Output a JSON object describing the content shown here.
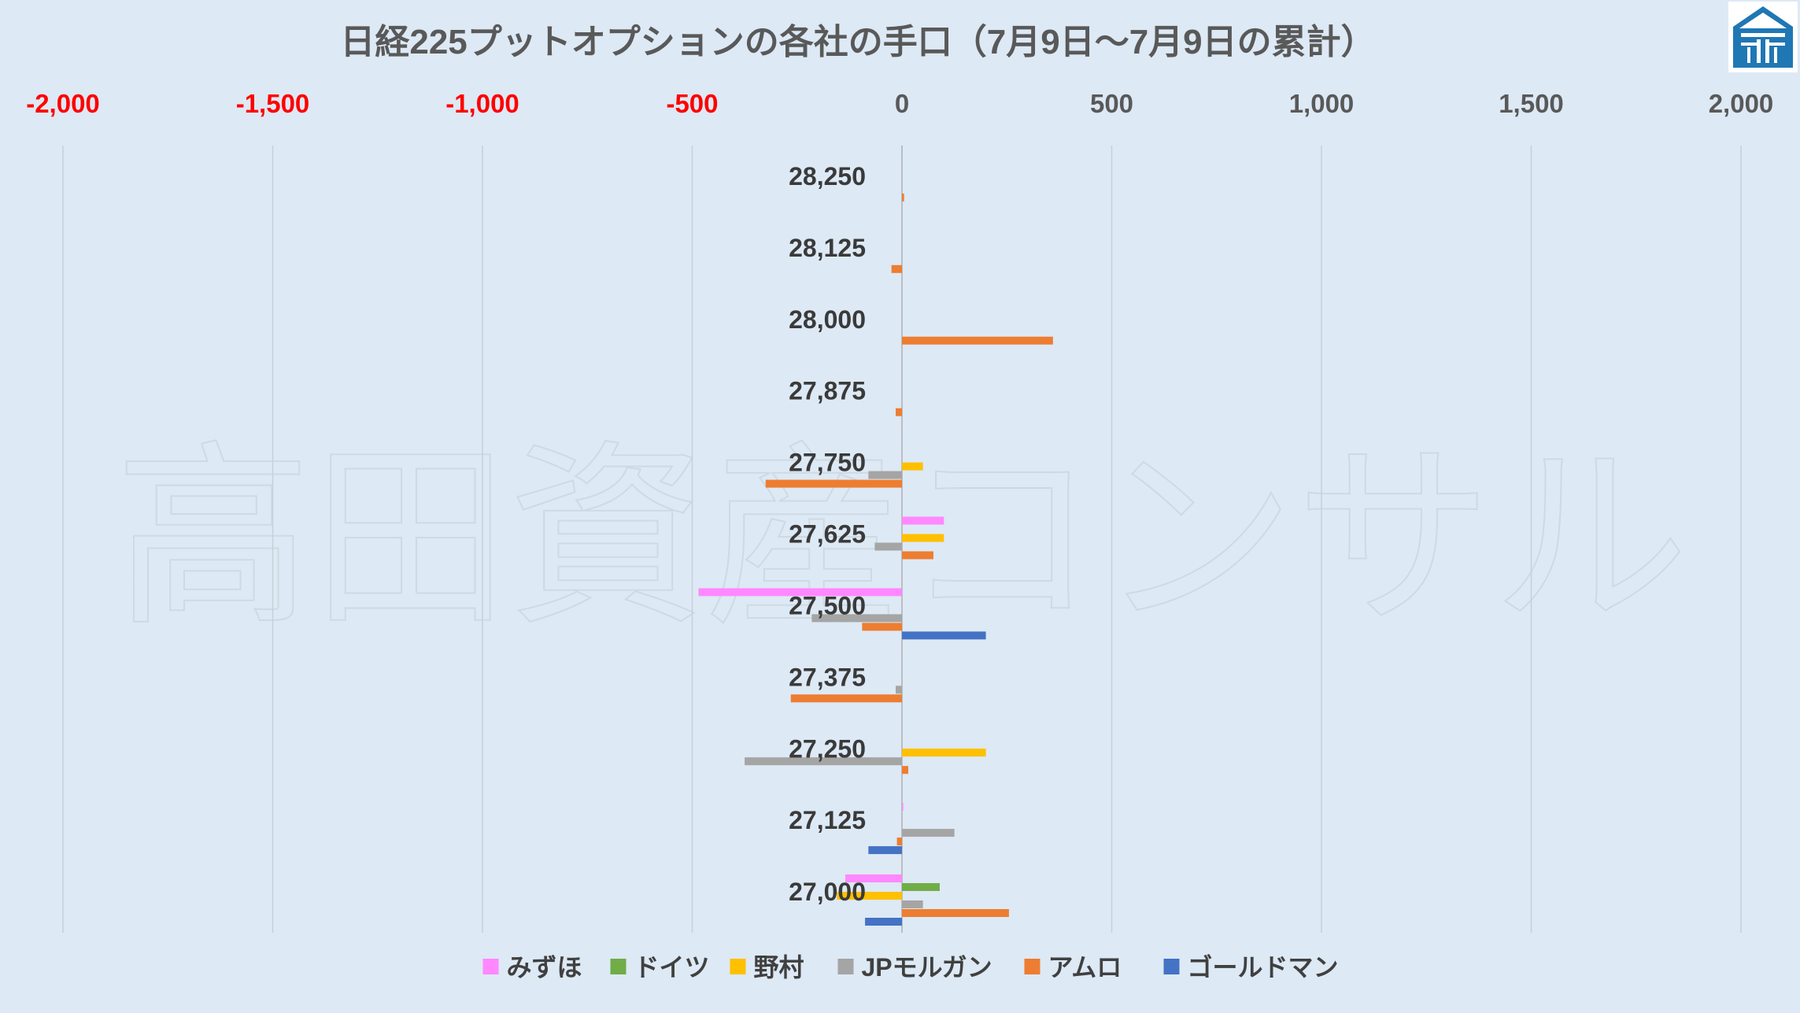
{
  "chart_data": {
    "type": "bar",
    "orientation": "horizontal",
    "title": "日経225プットオプションの各社の手口（7月9日～7月9日の累計）",
    "watermark": "高田資産コンサル",
    "xlim": [
      -2000,
      2000
    ],
    "x_ticks": [
      -2000,
      -1500,
      -1000,
      -500,
      0,
      500,
      1000,
      1500,
      2000
    ],
    "x_tick_labels": [
      "-2,000",
      "-1,500",
      "-1,000",
      "-500",
      "0",
      "500",
      "1,000",
      "1,500",
      "2,000"
    ],
    "negative_tick_color": "#ff0000",
    "positive_tick_color": "#595959",
    "grid": "vertical",
    "axis_position": "top",
    "legend_position": "bottom",
    "categories": [
      "28,250",
      "28,125",
      "28,000",
      "27,875",
      "27,750",
      "27,625",
      "27,500",
      "27,375",
      "27,250",
      "27,125",
      "27,000"
    ],
    "series": [
      {
        "name": "みずほ",
        "color": "#ff88ff",
        "values": [
          0,
          0,
          0,
          0,
          0,
          100,
          -485,
          0,
          0,
          3,
          -135
        ]
      },
      {
        "name": "ドイツ",
        "color": "#70ad47",
        "values": [
          0,
          0,
          0,
          0,
          0,
          0,
          0,
          0,
          0,
          0,
          90
        ]
      },
      {
        "name": "野村",
        "color": "#ffc000",
        "values": [
          0,
          0,
          0,
          0,
          50,
          100,
          0,
          0,
          200,
          0,
          -155
        ]
      },
      {
        "name": "JPモルガン",
        "color": "#a5a5a5",
        "values": [
          0,
          0,
          0,
          0,
          -80,
          -65,
          -215,
          -15,
          -375,
          125,
          50
        ]
      },
      {
        "name": "アムロ",
        "color": "#ed7d31",
        "values": [
          5,
          -25,
          360,
          -15,
          -325,
          75,
          -95,
          -265,
          15,
          -12,
          255
        ]
      },
      {
        "name": "ゴールドマン",
        "color": "#4472c4",
        "values": [
          0,
          0,
          0,
          0,
          0,
          0,
          200,
          0,
          0,
          -80,
          -88
        ]
      }
    ]
  },
  "logo": {
    "name": "company-logo",
    "color": "#1f77b4"
  }
}
